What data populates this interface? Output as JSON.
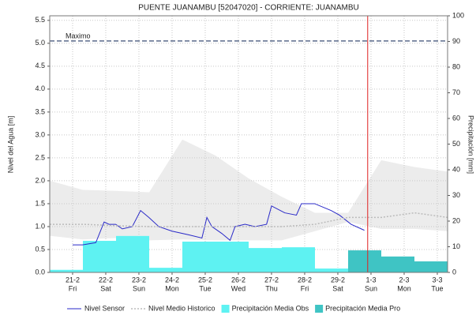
{
  "chart_data": {
    "type": "line",
    "title": "PUENTE JUANAMBU   [52047020] - CORRIENTE: JUANAMBU",
    "y_label": "Nivel del Agua [m]",
    "y2_label": "Precipitación [mm]",
    "categories": [
      "21-2",
      "22-2",
      "23-2",
      "24-2",
      "25-2",
      "26-2",
      "27-2",
      "28-2",
      "29-2",
      "1-3",
      "2-3",
      "3-3"
    ],
    "weekdays": [
      "Fri",
      "Sat",
      "Sun",
      "Mon",
      "Tue",
      "Wed",
      "Thu",
      "Fri",
      "Sat",
      "Sun",
      "Mon",
      "Tue"
    ],
    "xlim": [
      -0.69,
      11.31
    ],
    "ylim": [
      0,
      5.6
    ],
    "yticks": [
      {
        "value": 0,
        "label": "0.0"
      },
      0.5,
      {
        "value": 1,
        "label": "1.0"
      },
      1.5,
      {
        "value": 2,
        "label": "2.0"
      },
      2.5,
      {
        "value": 3,
        "label": "3.0"
      },
      3.5,
      {
        "value": 4,
        "label": "4.0"
      },
      4.5,
      {
        "value": 5,
        "label": "5.0"
      },
      5.5
    ],
    "y2lim": [
      0,
      100
    ],
    "y2ticks": [
      0,
      10,
      20,
      30,
      40,
      50,
      60,
      70,
      80,
      90,
      100
    ],
    "grid": true,
    "legend": "bottom",
    "annotation": {
      "label": "Maximo",
      "value": 5.05,
      "color": "#5a6a8a"
    },
    "current_x": 8.9,
    "current_color": "#e02020",
    "bins": [
      -0.69,
      0.31,
      1.31,
      2.31,
      3.31,
      4.31,
      5.31,
      6.31,
      7.31,
      8.31,
      9.31,
      10.31,
      11.31
    ],
    "historic_range": {
      "color": "#ececec",
      "x": [
        -0.69,
        0.31,
        1.31,
        2.31,
        3.31,
        4.31,
        5.31,
        6.31,
        7.31,
        8.31,
        9.31,
        10.31,
        11.31
      ],
      "upper": [
        2.0,
        1.8,
        1.78,
        1.75,
        2.9,
        2.55,
        2.05,
        1.65,
        1.3,
        1.3,
        2.45,
        2.3,
        2.2
      ],
      "lower": [
        0.8,
        0.72,
        0.75,
        0.7,
        0.72,
        0.7,
        0.7,
        0.7,
        0.9,
        1.1,
        0.95,
        0.95,
        0.9
      ]
    },
    "series": [
      {
        "name": "Nivel Sensor",
        "color": "#2a2ac8",
        "style": "line",
        "x": [
          0,
          0.3,
          0.7,
          0.95,
          1.1,
          1.3,
          1.5,
          1.8,
          2.05,
          2.3,
          2.6,
          3.0,
          3.5,
          3.9,
          4.05,
          4.2,
          4.5,
          4.75,
          4.9,
          5.2,
          5.5,
          5.85,
          6.0,
          6.4,
          6.75,
          6.9,
          7.3,
          7.8,
          8.05,
          8.4,
          8.8
        ],
        "values": [
          0.6,
          0.6,
          0.65,
          1.1,
          1.05,
          1.05,
          0.95,
          1.0,
          1.35,
          1.2,
          1.0,
          0.9,
          0.82,
          0.75,
          1.2,
          1.0,
          0.85,
          0.7,
          1.0,
          1.05,
          1.0,
          1.05,
          1.45,
          1.3,
          1.25,
          1.5,
          1.5,
          1.35,
          1.25,
          1.05,
          0.92
        ]
      },
      {
        "name": "Nivel Medio Historico",
        "color": "#bbbbbb",
        "style": "dotted",
        "x": [
          -0.69,
          0.31,
          1.31,
          2.31,
          3.31,
          4.31,
          5.31,
          6.31,
          7.31,
          8.31,
          9.31,
          10.31,
          11.31
        ],
        "values": [
          1.05,
          1.05,
          1.02,
          1.0,
          1.0,
          1.0,
          1.0,
          1.0,
          1.05,
          1.2,
          1.2,
          1.3,
          1.2
        ]
      },
      {
        "name": "Precipitación Media Obs",
        "color": "#5ef2f2",
        "style": "step",
        "axis": "y2",
        "values": [
          1,
          12.3,
          14.2,
          1.8,
          12,
          12,
          9.5,
          9.8,
          1.5,
          null,
          null,
          null
        ]
      },
      {
        "name": "Precipitación Media Pro",
        "color": "#3fc4c4",
        "style": "step",
        "axis": "y2",
        "values": [
          null,
          null,
          null,
          null,
          null,
          null,
          null,
          null,
          null,
          8.6,
          6.2,
          4.3
        ]
      }
    ]
  }
}
